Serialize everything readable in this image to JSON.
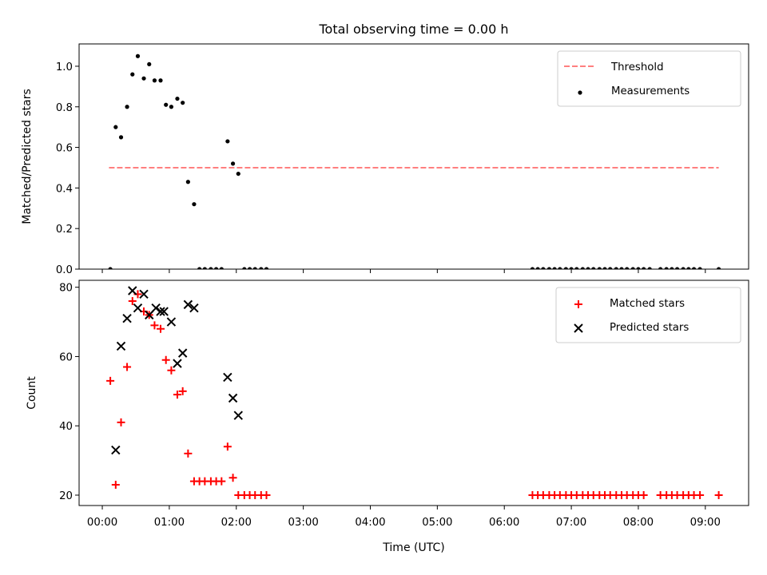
{
  "title": "Total observing time = 0.00 h",
  "chart_data": [
    {
      "type": "scatter",
      "ylabel": "Matched/Predicted stars",
      "xlabel": "",
      "xlim": [
        -0.3462,
        9.6462
      ],
      "ylim": [
        0,
        1.11
      ],
      "yticks": [
        0,
        0.2,
        0.4,
        0.6,
        0.8,
        1.0
      ],
      "ytick_labels": [
        "0.0",
        "0.2",
        "0.4",
        "0.6",
        "0.8",
        "1.0"
      ],
      "legend_position": "upper right",
      "threshold": {
        "name": "Threshold",
        "value": 0.5,
        "x": [
          0.1,
          9.2
        ],
        "color": "#ff7f7f",
        "style": "dashed"
      },
      "series": [
        {
          "name": "Measurements",
          "marker": "dot",
          "color": "#000000",
          "x": [
            0.12,
            0.2,
            0.28,
            0.37,
            0.45,
            0.53,
            0.62,
            0.7,
            0.78,
            0.87,
            0.95,
            1.03,
            1.12,
            1.2,
            1.28,
            1.37,
            1.45,
            1.53,
            1.62,
            1.7,
            1.78,
            1.87,
            1.95,
            2.03,
            2.12,
            2.2,
            2.28,
            2.37,
            2.45,
            6.42,
            6.5,
            6.58,
            6.67,
            6.75,
            6.83,
            6.92,
            7.0,
            7.08,
            7.17,
            7.25,
            7.33,
            7.42,
            7.5,
            7.58,
            7.67,
            7.75,
            7.83,
            7.92,
            8.0,
            8.08,
            8.17,
            8.33,
            8.42,
            8.5,
            8.58,
            8.67,
            8.75,
            8.83,
            8.92,
            9.2
          ],
          "y": [
            0.0,
            0.7,
            0.65,
            0.8,
            0.96,
            1.05,
            0.94,
            1.01,
            0.93,
            0.93,
            0.81,
            0.8,
            0.84,
            0.82,
            0.43,
            0.32,
            0.0,
            0.0,
            0.0,
            0.0,
            0.0,
            0.63,
            0.52,
            0.47,
            0.0,
            0.0,
            0.0,
            0.0,
            0.0,
            0.0,
            0.0,
            0.0,
            0.0,
            0.0,
            0.0,
            0.0,
            0.0,
            0.0,
            0.0,
            0.0,
            0.0,
            0.0,
            0.0,
            0.0,
            0.0,
            0.0,
            0.0,
            0.0,
            0.0,
            0.0,
            0.0,
            0.0,
            0.0,
            0.0,
            0.0,
            0.0,
            0.0,
            0.0,
            0.0,
            0.0
          ]
        }
      ]
    },
    {
      "type": "scatter",
      "ylabel": "Count",
      "xlabel": "Time (UTC)",
      "xlim": [
        -0.3462,
        9.6462
      ],
      "ylim": [
        17,
        82
      ],
      "yticks": [
        20,
        40,
        60,
        80
      ],
      "ytick_labels": [
        "20",
        "40",
        "60",
        "80"
      ],
      "xticks": [
        0,
        1,
        2,
        3,
        4,
        5,
        6,
        7,
        8,
        9
      ],
      "xtick_labels": [
        "00:00",
        "01:00",
        "02:00",
        "03:00",
        "04:00",
        "05:00",
        "06:00",
        "07:00",
        "08:00",
        "09:00"
      ],
      "legend_position": "upper right",
      "series": [
        {
          "name": "Matched stars",
          "marker": "plus",
          "color": "#ff0000",
          "x": [
            0.12,
            0.2,
            0.28,
            0.37,
            0.45,
            0.53,
            0.62,
            0.7,
            0.78,
            0.87,
            0.95,
            1.03,
            1.12,
            1.2,
            1.28,
            1.37,
            1.45,
            1.53,
            1.62,
            1.7,
            1.78,
            1.87,
            1.95,
            2.03,
            2.12,
            2.2,
            2.28,
            2.37,
            2.45,
            6.42,
            6.5,
            6.58,
            6.67,
            6.75,
            6.83,
            6.92,
            7.0,
            7.08,
            7.17,
            7.25,
            7.33,
            7.42,
            7.5,
            7.58,
            7.67,
            7.75,
            7.83,
            7.92,
            8.0,
            8.08,
            8.33,
            8.42,
            8.5,
            8.58,
            8.67,
            8.75,
            8.83,
            8.92,
            9.2
          ],
          "y": [
            53,
            23,
            41,
            57,
            76,
            78,
            73,
            72,
            69,
            68,
            59,
            56,
            49,
            50,
            32,
            24,
            24,
            24,
            24,
            24,
            24,
            34,
            25,
            20,
            20,
            20,
            20,
            20,
            20,
            20,
            20,
            20,
            20,
            20,
            20,
            20,
            20,
            20,
            20,
            20,
            20,
            20,
            20,
            20,
            20,
            20,
            20,
            20,
            20,
            20,
            20,
            20,
            20,
            20,
            20,
            20,
            20,
            20,
            20
          ]
        },
        {
          "name": "Predicted stars",
          "marker": "x",
          "color": "#000000",
          "x": [
            0.2,
            0.28,
            0.37,
            0.45,
            0.53,
            0.62,
            0.7,
            0.8,
            0.87,
            0.92,
            1.03,
            1.12,
            1.2,
            1.28,
            1.37,
            1.87,
            1.95,
            2.03
          ],
          "y": [
            33,
            63,
            71,
            79,
            74,
            78,
            72,
            74,
            73,
            73,
            70,
            58,
            61,
            75,
            74,
            54,
            48,
            43
          ]
        }
      ]
    }
  ]
}
